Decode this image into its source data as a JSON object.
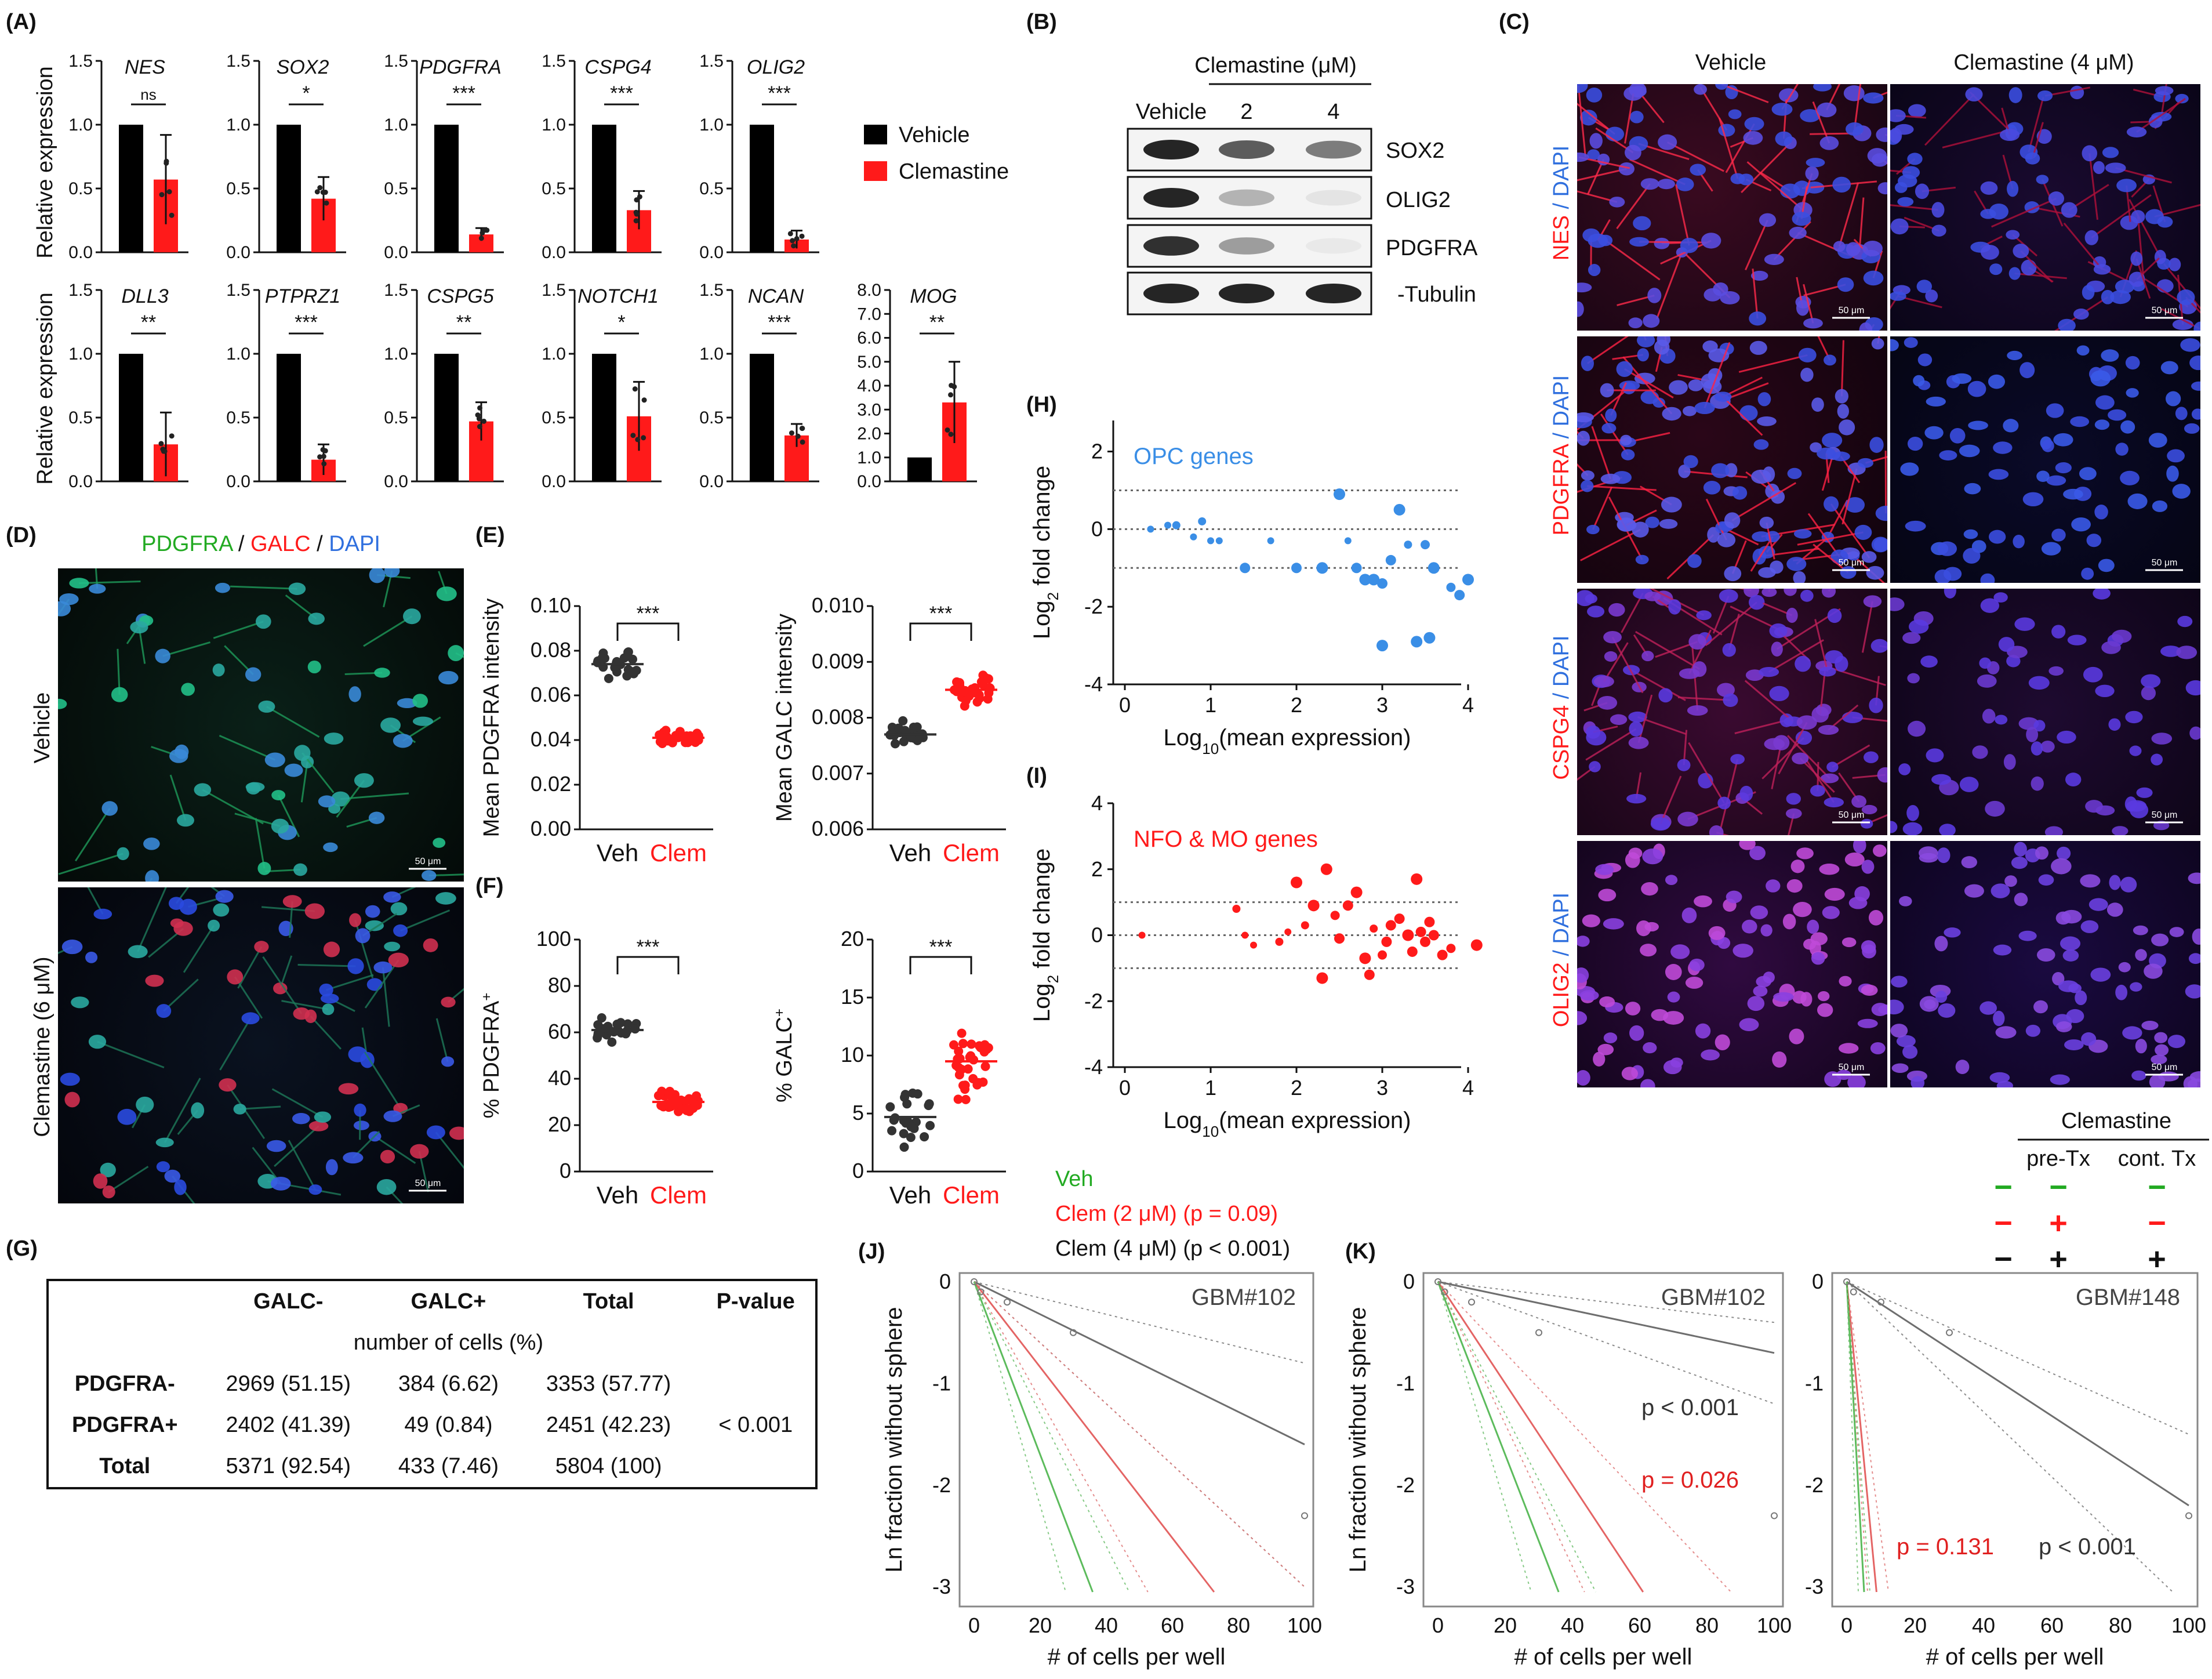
{
  "panels": {
    "A": "(A)",
    "B": "(B)",
    "C": "(C)",
    "D": "(D)",
    "E": "(E)",
    "F": "(F)",
    "G": "(G)",
    "H": "(H)",
    "I": "(I)",
    "J": "(J)",
    "K": "(K)"
  },
  "panelA": {
    "ylabel": "Relative expression",
    "legend": [
      {
        "label": "Vehicle",
        "color": "#000000"
      },
      {
        "label": "Clemastine",
        "color": "#ff1a1a"
      }
    ],
    "genes_top": [
      {
        "name": "NES",
        "vehicle": 1.0,
        "clem": 0.57,
        "err": 0.35,
        "sig": "ns"
      },
      {
        "name": "SOX2",
        "vehicle": 1.0,
        "clem": 0.42,
        "err": 0.17,
        "sig": "*"
      },
      {
        "name": "PDGFRA",
        "vehicle": 1.0,
        "clem": 0.14,
        "err": 0.05,
        "sig": "***"
      },
      {
        "name": "CSPG4",
        "vehicle": 1.0,
        "clem": 0.33,
        "err": 0.15,
        "sig": "***"
      },
      {
        "name": "OLIG2",
        "vehicle": 1.0,
        "clem": 0.1,
        "err": 0.07,
        "sig": "***"
      }
    ],
    "genes_bottom": [
      {
        "name": "DLL3",
        "vehicle": 1.0,
        "clem": 0.29,
        "err": 0.25,
        "sig": "**"
      },
      {
        "name": "PTPRZ1",
        "vehicle": 1.0,
        "clem": 0.17,
        "err": 0.12,
        "sig": "***"
      },
      {
        "name": "CSPG5",
        "vehicle": 1.0,
        "clem": 0.47,
        "err": 0.15,
        "sig": "**"
      },
      {
        "name": "NOTCH1",
        "vehicle": 1.0,
        "clem": 0.51,
        "err": 0.27,
        "sig": "*"
      },
      {
        "name": "NCAN",
        "vehicle": 1.0,
        "clem": 0.36,
        "err": 0.09,
        "sig": "***"
      }
    ],
    "mog": {
      "name": "MOG",
      "vehicle": 1.0,
      "clem": 3.3,
      "err": 1.7,
      "sig": "**",
      "yticks": [
        "8.0",
        "7.0",
        "6.0",
        "5.0",
        "4.0",
        "3.0",
        "2.0",
        "1.0",
        "0.0"
      ]
    },
    "yticks": [
      "1.5",
      "1.0",
      "0.5",
      "0.0"
    ]
  },
  "panelB": {
    "header": "Clemastine (μM)",
    "lanes": [
      "Vehicle",
      "2",
      "4"
    ],
    "bands": [
      "SOX2",
      "OLIG2",
      "PDGFRA",
      "-Tubulin"
    ]
  },
  "panelC": {
    "cols": [
      "Vehicle",
      "Clemastine (4 μM)"
    ],
    "rows": [
      {
        "marker": "NES",
        "dapi": " / DAPI"
      },
      {
        "marker": "PDGFRA",
        "dapi": " / DAPI"
      },
      {
        "marker": "CSPG4",
        "dapi": " / DAPI"
      },
      {
        "marker": "OLIG2",
        "dapi": " / DAPI"
      }
    ],
    "scalebar": "50 μm"
  },
  "panelD": {
    "title_pdgfra": "PDGFRA",
    "sep1": " / ",
    "title_galc": "GALC",
    "sep2": " / ",
    "title_dapi": "DAPI",
    "row1": "Vehicle",
    "row2": "Clemastine (6 μM)",
    "scalebar": "50 μm"
  },
  "panelE": {
    "left": {
      "ylabel": "Mean PDGFRA intensity",
      "yticks": [
        "0.10",
        "0.08",
        "0.06",
        "0.04",
        "0.02",
        "0.00"
      ],
      "sig": "***"
    },
    "right": {
      "ylabel": "Mean GALC intensity",
      "yticks": [
        "0.010",
        "0.009",
        "0.008",
        "0.007",
        "0.006"
      ],
      "sig": "***"
    },
    "xlabels": [
      "Veh",
      "Clem"
    ]
  },
  "panelF": {
    "left": {
      "ylabel": "% PDGFRA",
      "sup": "+",
      "yticks": [
        "100",
        "80",
        "60",
        "40",
        "20",
        "0"
      ],
      "sig": "***"
    },
    "right": {
      "ylabel": "% GALC",
      "sup": "+",
      "yticks": [
        "20",
        "15",
        "10",
        "5",
        "0"
      ],
      "sig": "***"
    },
    "xlabels": [
      "Veh",
      "Clem"
    ]
  },
  "panelG": {
    "header": [
      "",
      "GALC-",
      "GALC+",
      "Total",
      "P-value"
    ],
    "subheader": "number of cells (%)",
    "rows": [
      [
        "PDGFRA-",
        "2969 (51.15)",
        "384 (6.62)",
        "3353 (57.77)",
        ""
      ],
      [
        "PDGFRA+",
        "2402 (41.39)",
        "49 (0.84)",
        "2451 (42.23)",
        "< 0.001"
      ],
      [
        "Total",
        "5371 (92.54)",
        "433 (7.46)",
        "5804 (100)",
        ""
      ]
    ]
  },
  "panelH": {
    "label": "OPC genes",
    "color": "#3a8ee6",
    "ylabel": "Log",
    "ylabel_sub": "2",
    "ylabel_rest": " fold change",
    "xlabel": "Log",
    "xlabel_sub": "10",
    "xlabel_rest": "(mean expression)",
    "yticks": [
      "2",
      "0",
      "-2",
      "-4"
    ],
    "xticks": [
      "0",
      "1",
      "2",
      "3",
      "4"
    ]
  },
  "panelI": {
    "label": "NFO & MO genes",
    "color": "#ff1a1a",
    "ylabel": "Log",
    "ylabel_sub": "2",
    "ylabel_rest": " fold change",
    "xlabel": "Log",
    "xlabel_sub": "10",
    "xlabel_rest": "(mean expression)",
    "yticks": [
      "4",
      "2",
      "0",
      "-2",
      "-4"
    ],
    "xticks": [
      "0",
      "1",
      "2",
      "3",
      "4"
    ]
  },
  "legendJ": {
    "veh": "Veh",
    "clem2": "Clem (2 μM) (p = 0.09)",
    "clem4": "Clem (4 μM) (p < 0.001)",
    "veh_color": "#22aa22",
    "clem2_color": "#ff1a1a"
  },
  "legendK": {
    "title": "Clemastine",
    "pretx": "pre-Tx",
    "conttx": "cont. Tx",
    "rows": [
      [
        "−",
        "−",
        "−"
      ],
      [
        "−",
        "+",
        "−"
      ],
      [
        "−",
        "+",
        "+"
      ]
    ]
  },
  "panelJ": {
    "title": "GBM#102",
    "ylabel": "Ln fraction without sphere",
    "xlabel": "# of cells per well",
    "yticks": [
      "0",
      "-1",
      "-2",
      "-3"
    ],
    "xticks": [
      "0",
      "20",
      "40",
      "60",
      "80",
      "100"
    ]
  },
  "panelK1": {
    "title": "GBM#102",
    "p1": "p < 0.001",
    "p2": "p = 0.026",
    "ylabel": "Ln fraction without sphere",
    "xlabel": "# of cells per well",
    "xticks": [
      "0",
      "20",
      "40",
      "60",
      "80",
      "100"
    ],
    "yticks": [
      "0",
      "-1",
      "-2",
      "-3"
    ]
  },
  "panelK2": {
    "title": "GBM#148",
    "p1": "p = 0.131",
    "p2": "p < 0.001",
    "xlabel": "# of cells per well",
    "xticks": [
      "0",
      "20",
      "40",
      "60",
      "80",
      "100"
    ],
    "yticks": [
      "0",
      "-1",
      "-2",
      "-3"
    ]
  }
}
